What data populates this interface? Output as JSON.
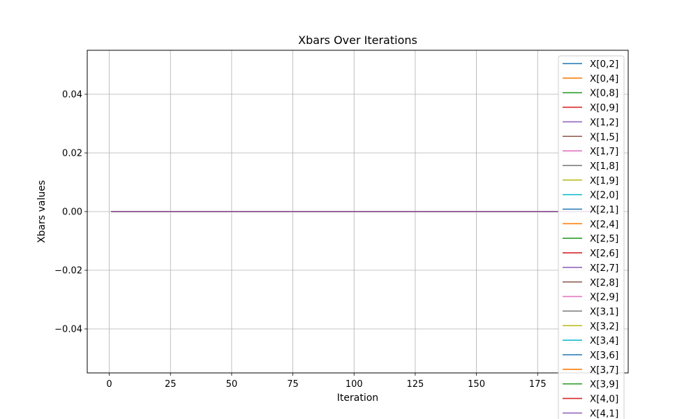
{
  "chart_data": {
    "type": "line",
    "title": "Xbars Over Iterations",
    "xlabel": "Iteration",
    "ylabel": "Xbars values",
    "xlim": [
      -9,
      212
    ],
    "ylim": [
      -0.055,
      0.055
    ],
    "x_ticks": [
      0,
      25,
      50,
      75,
      100,
      125,
      150,
      175
    ],
    "y_ticks": [
      -0.04,
      -0.02,
      0.0,
      0.02,
      0.04
    ],
    "x_tick_labels": [
      "0",
      "25",
      "50",
      "75",
      "100",
      "125",
      "150",
      "175"
    ],
    "y_tick_labels": [
      "−0.04",
      "−0.02",
      "0.00",
      "0.02",
      "0.04"
    ],
    "grid": true,
    "legend_position": "upper right",
    "x_range": [
      1,
      200
    ],
    "series": [
      {
        "name": "X[0,2]",
        "color": "#1f77b4",
        "value": 0.0
      },
      {
        "name": "X[0,4]",
        "color": "#ff7f0e",
        "value": 0.0
      },
      {
        "name": "X[0,8]",
        "color": "#2ca02c",
        "value": 0.0
      },
      {
        "name": "X[0,9]",
        "color": "#d62728",
        "value": 0.0
      },
      {
        "name": "X[1,2]",
        "color": "#9467bd",
        "value": 0.0
      },
      {
        "name": "X[1,5]",
        "color": "#8c564b",
        "value": 0.0
      },
      {
        "name": "X[1,7]",
        "color": "#e377c2",
        "value": 0.0
      },
      {
        "name": "X[1,8]",
        "color": "#7f7f7f",
        "value": 0.0
      },
      {
        "name": "X[1,9]",
        "color": "#bcbd22",
        "value": 0.0
      },
      {
        "name": "X[2,0]",
        "color": "#17becf",
        "value": 0.0
      },
      {
        "name": "X[2,1]",
        "color": "#1f77b4",
        "value": 0.0
      },
      {
        "name": "X[2,4]",
        "color": "#ff7f0e",
        "value": 0.0
      },
      {
        "name": "X[2,5]",
        "color": "#2ca02c",
        "value": 0.0
      },
      {
        "name": "X[2,6]",
        "color": "#d62728",
        "value": 0.0
      },
      {
        "name": "X[2,7]",
        "color": "#9467bd",
        "value": 0.0
      },
      {
        "name": "X[2,8]",
        "color": "#8c564b",
        "value": 0.0
      },
      {
        "name": "X[2,9]",
        "color": "#e377c2",
        "value": 0.0
      },
      {
        "name": "X[3,1]",
        "color": "#7f7f7f",
        "value": 0.0
      },
      {
        "name": "X[3,2]",
        "color": "#bcbd22",
        "value": 0.0
      },
      {
        "name": "X[3,4]",
        "color": "#17becf",
        "value": 0.0
      },
      {
        "name": "X[3,6]",
        "color": "#1f77b4",
        "value": 0.0
      },
      {
        "name": "X[3,7]",
        "color": "#ff7f0e",
        "value": 0.0
      },
      {
        "name": "X[3,9]",
        "color": "#2ca02c",
        "value": 0.0
      },
      {
        "name": "X[4,0]",
        "color": "#d62728",
        "value": 0.0
      },
      {
        "name": "X[4,1]",
        "color": "#9467bd",
        "value": 0.0
      }
    ]
  }
}
